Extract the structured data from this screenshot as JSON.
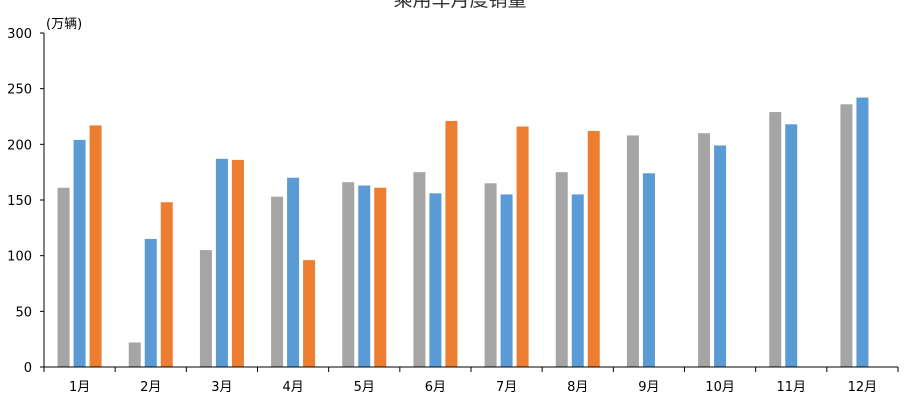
{
  "chart_data": {
    "type": "bar",
    "title": "乘用车月度销量",
    "ylabel": "(万辆)",
    "xlabel": "",
    "ylim": [
      0,
      300
    ],
    "yticks": [
      0,
      50,
      100,
      150,
      200,
      250,
      300
    ],
    "categories": [
      "1月",
      "2月",
      "3月",
      "4月",
      "5月",
      "6月",
      "7月",
      "8月",
      "9月",
      "10月",
      "11月",
      "12月"
    ],
    "series": [
      {
        "color": "#a5a5a5",
        "values": [
          161,
          22,
          105,
          153,
          166,
          175,
          165,
          175,
          208,
          210,
          229,
          236
        ]
      },
      {
        "color": "#5b9bd5",
        "values": [
          204,
          115,
          187,
          170,
          163,
          156,
          155,
          155,
          174,
          199,
          218,
          242
        ]
      },
      {
        "color": "#ed7d31",
        "values": [
          217,
          148,
          186,
          96,
          161,
          221,
          216,
          212,
          null,
          null,
          null,
          null
        ]
      }
    ],
    "grid": false,
    "legend": "none"
  }
}
